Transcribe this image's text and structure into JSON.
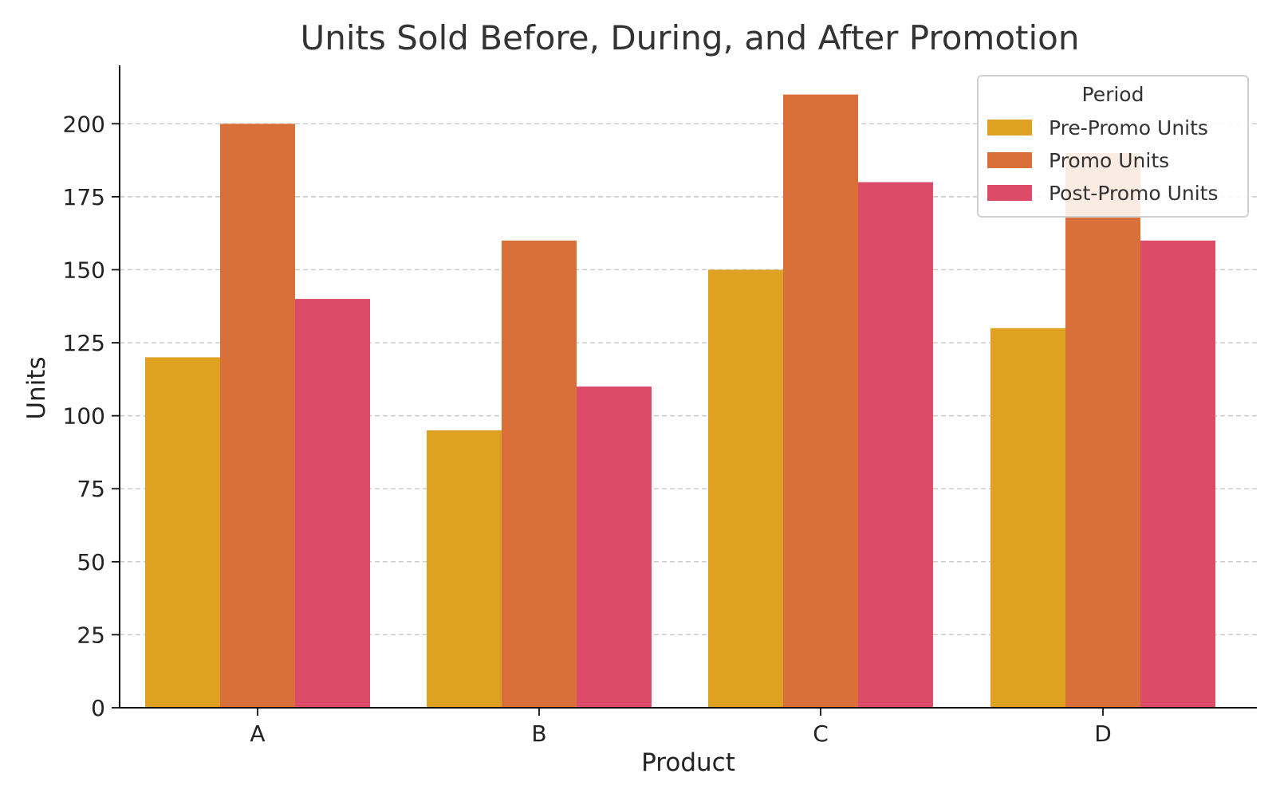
{
  "chart_data": {
    "type": "bar",
    "title": "Units Sold Before, During, and After Promotion",
    "xlabel": "Product",
    "ylabel": "Units",
    "categories": [
      "A",
      "B",
      "C",
      "D"
    ],
    "series": [
      {
        "name": "Pre-Promo Units",
        "color": "#dea122",
        "values": [
          120,
          95,
          150,
          130
        ]
      },
      {
        "name": "Promo Units",
        "color": "#d9703a",
        "values": [
          200,
          160,
          210,
          190
        ]
      },
      {
        "name": "Post-Promo Units",
        "color": "#dc4b67",
        "values": [
          140,
          110,
          180,
          160
        ]
      }
    ],
    "ylim": [
      0,
      220
    ],
    "yticks": [
      0,
      25,
      50,
      75,
      100,
      125,
      150,
      175,
      200
    ],
    "ytick_labels": [
      "0",
      "25",
      "50",
      "75",
      "100",
      "125",
      "150",
      "175",
      "200"
    ],
    "grid": "horizontal",
    "legend": {
      "title": "Period",
      "placement": "top-right"
    }
  }
}
